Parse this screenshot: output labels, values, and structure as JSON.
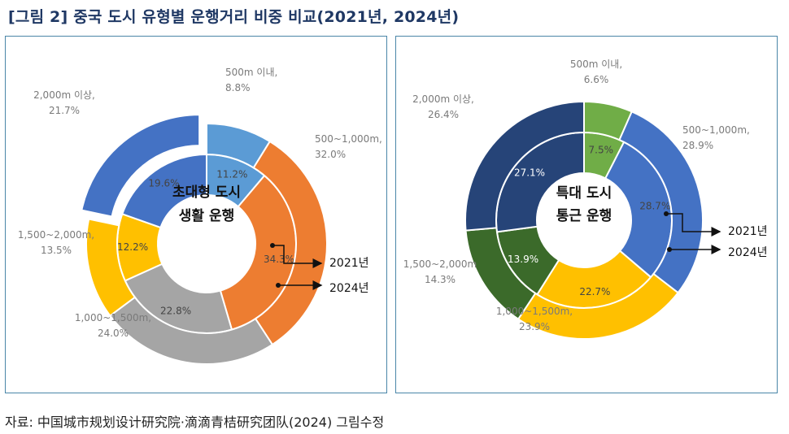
{
  "figure": {
    "title_prefix": "[그림 2]",
    "title_text": "중국 도시 유형별 운행거리 비중 비교(2021년, 2024년)",
    "source": "자료: 中国城市规划设计研究院·滴滴青桔研究团队(2024) 그림수정"
  },
  "chart_data": [
    {
      "type": "donut",
      "center_label": [
        "초대형 도시",
        "생활 운행"
      ],
      "categories": [
        "500m 이내",
        "500~1,000m",
        "1,000~1,500m",
        "1,500~2,000m",
        "2,000m 이상"
      ],
      "category_labels": [
        [
          "500m 이내,",
          "8.8%"
        ],
        [
          "500~1,000m,",
          "32.0%"
        ],
        [
          "1,000~1,500m,",
          "24.0%"
        ],
        [
          "1,500~2,000m,",
          "13.5%"
        ],
        [
          "2,000m 이상,",
          "21.7%"
        ]
      ],
      "series": [
        {
          "name": "2021년",
          "ring": "inner",
          "values": [
            11.2,
            34.3,
            22.8,
            12.2,
            19.6
          ],
          "value_labels": [
            "11.2%",
            "34.3%",
            "22.8%",
            "12.2%",
            "19.6%"
          ]
        },
        {
          "name": "2024년",
          "ring": "outer",
          "values": [
            8.8,
            32.0,
            24.0,
            13.5,
            21.7
          ],
          "value_labels": [
            "8.8%",
            "32.0%",
            "24.0%",
            "13.5%",
            "21.7%"
          ]
        }
      ],
      "colors": [
        "#5b9bd5",
        "#ed7d31",
        "#a5a5a5",
        "#ffc000",
        "#4472c4"
      ],
      "exploded_outer_category": "2,000m 이상"
    },
    {
      "type": "donut",
      "center_label": [
        "특대 도시",
        "통근 운행"
      ],
      "categories": [
        "500m 이내",
        "500~1,000m",
        "1,000~1,500m",
        "1,500~2,000m",
        "2,000m 이상"
      ],
      "category_labels": [
        [
          "500m 이내,",
          "6.6%"
        ],
        [
          "500~1,000m,",
          "28.9%"
        ],
        [
          "1,000~1,500m,",
          "23.9%"
        ],
        [
          "1,500~2,000m",
          "14.3%"
        ],
        [
          "2,000m 이상,",
          "26.4%"
        ]
      ],
      "series": [
        {
          "name": "2021년",
          "ring": "inner",
          "values": [
            7.5,
            28.7,
            22.7,
            13.9,
            27.1
          ],
          "value_labels": [
            "7.5%",
            "28.7%",
            "22.7%",
            "13.9%",
            "27.1%"
          ]
        },
        {
          "name": "2024년",
          "ring": "outer",
          "values": [
            6.6,
            28.9,
            23.9,
            14.3,
            26.4
          ],
          "value_labels": [
            "6.6%",
            "28.9%",
            "23.9%",
            "14.3%",
            "26.4%"
          ]
        }
      ],
      "colors": [
        "#70ad47",
        "#4472c4",
        "#ffc000",
        "#3b6a2a",
        "#264478"
      ]
    }
  ]
}
